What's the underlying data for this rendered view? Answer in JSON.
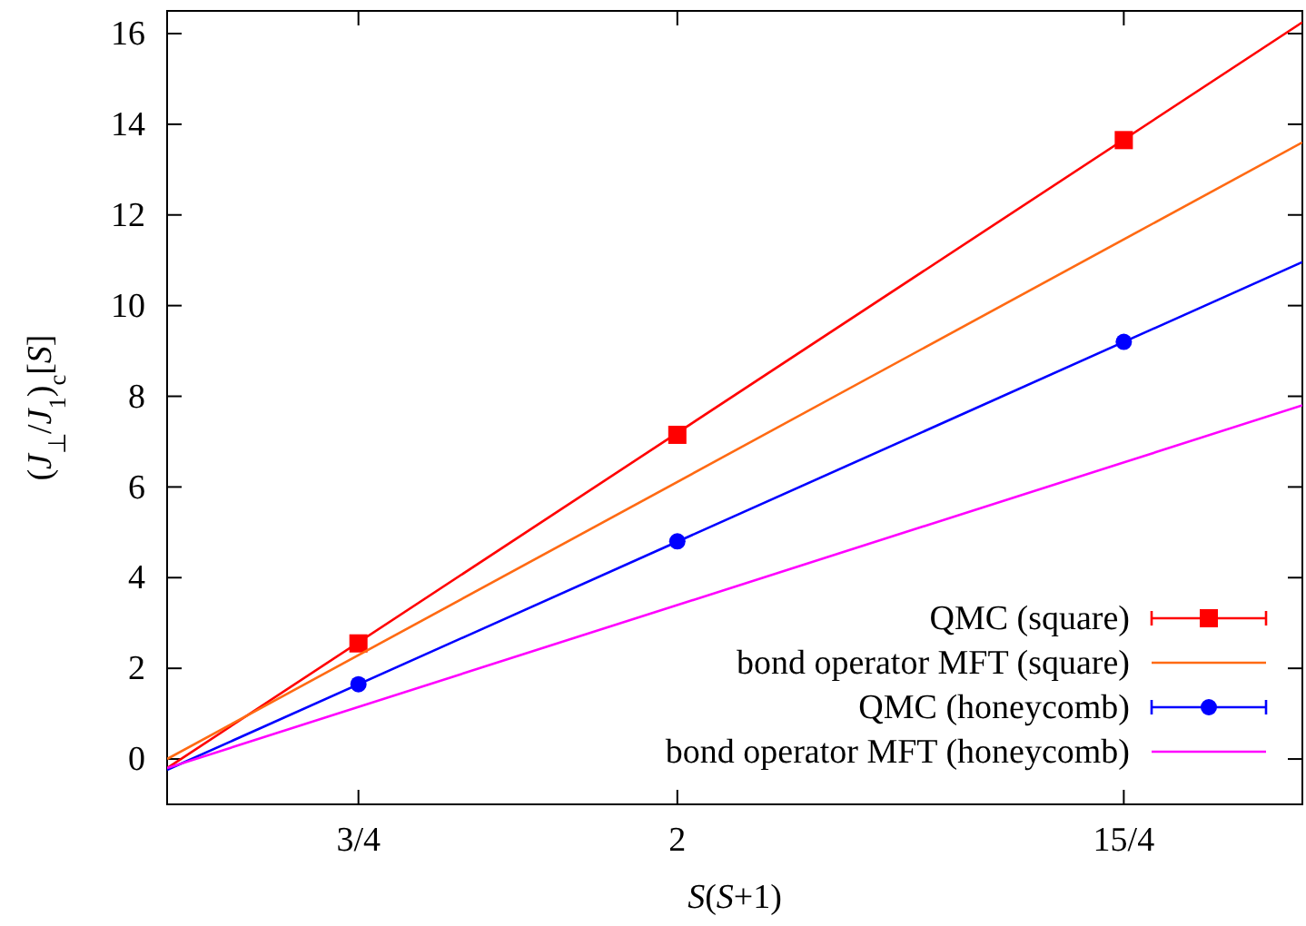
{
  "chart_data": {
    "type": "line",
    "xlabel": "S(S+1)",
    "ylabel": "(J$_{⊥}$/J$_{1}$)$_{c}$[S]",
    "xlim": [
      0,
      4.45
    ],
    "ylim": [
      -1,
      16.5
    ],
    "xticks": [
      {
        "value": 0.75,
        "label": "3/4"
      },
      2,
      {
        "value": 3.75,
        "label": "15/4"
      }
    ],
    "yticks": [
      0,
      2,
      4,
      6,
      8,
      10,
      12,
      14,
      16
    ],
    "grid": false,
    "legend": "bottom right",
    "series": [
      {
        "type": "line",
        "color": "#ff0000",
        "x": [
          0,
          4.45
        ],
        "values": [
          -0.2,
          16.25
        ],
        "marker": "none"
      },
      {
        "type": "scatter",
        "name": "QMC (square)",
        "color": "#ff0000",
        "x": [
          0.75,
          2,
          3.75
        ],
        "values": [
          2.55,
          7.15,
          13.65
        ],
        "marker": "square"
      },
      {
        "type": "line",
        "name": "bond operator MFT (square)",
        "color": "#ff6a13",
        "x": [
          0,
          4.45
        ],
        "values": [
          0,
          13.6
        ],
        "marker": "none"
      },
      {
        "type": "line",
        "color": "#0000ff",
        "x": [
          0,
          4.45
        ],
        "values": [
          -0.24,
          10.96
        ],
        "marker": "none"
      },
      {
        "type": "scatter",
        "name": "QMC (honeycomb)",
        "color": "#0000ff",
        "x": [
          0.75,
          2,
          3.75
        ],
        "values": [
          1.65,
          4.8,
          9.2
        ],
        "marker": "circle"
      },
      {
        "type": "line",
        "name": "bond operator MFT (honeycomb)",
        "color": "#ff00ff",
        "x": [
          0,
          4.45
        ],
        "values": [
          -0.2,
          7.8
        ],
        "marker": "none"
      }
    ]
  }
}
